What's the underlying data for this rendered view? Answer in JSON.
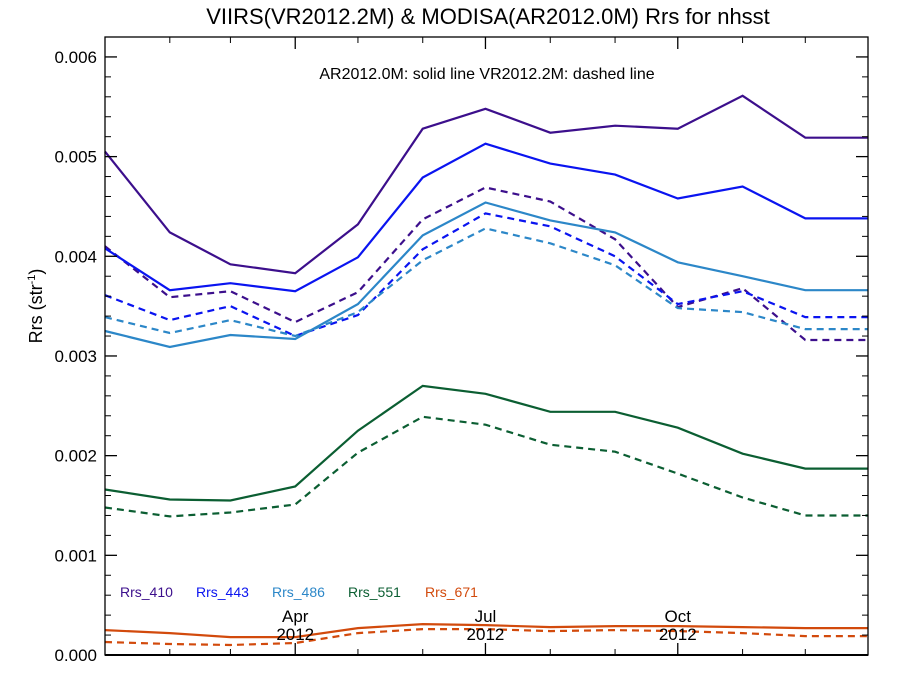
{
  "chart_data": {
    "type": "line",
    "title": "VIIRS(VR2012.2M) & MODISA(AR2012.0M)  Rrs for nhsst",
    "ylabel": "Rrs (str",
    "ylabel_sup": "-1",
    "ylabel_close": ")",
    "annotation": "AR2012.0M: solid line   VR2012.2M: dashed line",
    "ylim": [
      0.0,
      0.0062
    ],
    "yticks": [
      {
        "value": 0.0,
        "label": "0.000"
      },
      {
        "value": 0.001,
        "label": "0.001"
      },
      {
        "value": 0.002,
        "label": "0.002"
      },
      {
        "value": 0.003,
        "label": "0.003"
      },
      {
        "value": 0.004,
        "label": "0.004"
      },
      {
        "value": 0.005,
        "label": "0.005"
      },
      {
        "value": 0.006,
        "label": "0.006"
      }
    ],
    "xlim": [
      "2012-01-01",
      "2012-12-31"
    ],
    "xticks": [
      {
        "date": "2012-04-01",
        "label": "Apr",
        "sublabel": "2012"
      },
      {
        "date": "2012-07-01",
        "label": "Jul",
        "sublabel": "2012"
      },
      {
        "date": "2012-10-01",
        "label": "Oct",
        "sublabel": "2012"
      }
    ],
    "x": [
      "2012-01-01",
      "2012-02-01",
      "2012-03-01",
      "2012-04-01",
      "2012-05-01",
      "2012-06-01",
      "2012-07-01",
      "2012-08-01",
      "2012-09-01",
      "2012-10-01",
      "2012-11-01",
      "2012-12-01",
      "2012-12-31"
    ],
    "series": [
      {
        "name": "Rrs_410",
        "color": "#3c0f8c",
        "style": "solid",
        "values": [
          0.00505,
          0.00424,
          0.00392,
          0.00383,
          0.00432,
          0.00528,
          0.00548,
          0.00524,
          0.00531,
          0.00528,
          0.00561,
          0.00519,
          0.00519
        ]
      },
      {
        "name": "Rrs_410",
        "color": "#3c0f8c",
        "style": "dashed",
        "values": [
          0.0041,
          0.00359,
          0.00365,
          0.00334,
          0.00364,
          0.00437,
          0.00469,
          0.00455,
          0.00417,
          0.00349,
          0.00368,
          0.00316,
          0.00316
        ]
      },
      {
        "name": "Rrs_443",
        "color": "#0a14f0",
        "style": "solid",
        "values": [
          0.00408,
          0.00366,
          0.00373,
          0.00365,
          0.00399,
          0.00479,
          0.00513,
          0.00493,
          0.00482,
          0.00458,
          0.0047,
          0.00438,
          0.00438
        ]
      },
      {
        "name": "Rrs_443",
        "color": "#0a14f0",
        "style": "dashed",
        "values": [
          0.00361,
          0.00336,
          0.0035,
          0.0032,
          0.00341,
          0.00407,
          0.00443,
          0.0043,
          0.004,
          0.00352,
          0.00365,
          0.00339,
          0.00339
        ]
      },
      {
        "name": "Rrs_486",
        "color": "#2c87c8",
        "style": "solid",
        "values": [
          0.00325,
          0.00309,
          0.00321,
          0.00317,
          0.00352,
          0.00421,
          0.00454,
          0.00436,
          0.00424,
          0.00394,
          0.0038,
          0.00366,
          0.00366
        ]
      },
      {
        "name": "Rrs_486",
        "color": "#2c87c8",
        "style": "dashed",
        "values": [
          0.00339,
          0.00323,
          0.00336,
          0.0032,
          0.00344,
          0.00396,
          0.00428,
          0.00413,
          0.00391,
          0.00348,
          0.00344,
          0.00327,
          0.00327
        ]
      },
      {
        "name": "Rrs_551",
        "color": "#0b5e32",
        "style": "solid",
        "values": [
          0.00166,
          0.00156,
          0.00155,
          0.00169,
          0.00225,
          0.0027,
          0.00262,
          0.00244,
          0.00244,
          0.00228,
          0.00202,
          0.00187,
          0.00187
        ]
      },
      {
        "name": "Rrs_551",
        "color": "#0b5e32",
        "style": "dashed",
        "values": [
          0.00148,
          0.00139,
          0.00143,
          0.00151,
          0.00203,
          0.00239,
          0.00231,
          0.00211,
          0.00204,
          0.00182,
          0.00158,
          0.0014,
          0.0014
        ]
      },
      {
        "name": "Rrs_671",
        "color": "#d24a0c",
        "style": "solid",
        "values": [
          0.00025,
          0.00022,
          0.00018,
          0.00018,
          0.00027,
          0.00031,
          0.0003,
          0.00028,
          0.00029,
          0.00029,
          0.00028,
          0.00027,
          0.00027
        ]
      },
      {
        "name": "Rrs_671",
        "color": "#d24a0c",
        "style": "dashed",
        "values": [
          0.00013,
          0.00011,
          0.0001,
          0.00012,
          0.00022,
          0.00026,
          0.00026,
          0.00024,
          0.00025,
          0.00024,
          0.00022,
          0.00019,
          0.00019
        ]
      }
    ],
    "legend": [
      {
        "label": "Rrs_410",
        "color": "#3c0f8c"
      },
      {
        "label": "Rrs_443",
        "color": "#0a14f0"
      },
      {
        "label": "Rrs_486",
        "color": "#2c87c8"
      },
      {
        "label": "Rrs_551",
        "color": "#0b5e32"
      },
      {
        "label": "Rrs_671",
        "color": "#d24a0c"
      }
    ],
    "legend_position": "bottom-left",
    "zero_line": true,
    "grid": false
  }
}
